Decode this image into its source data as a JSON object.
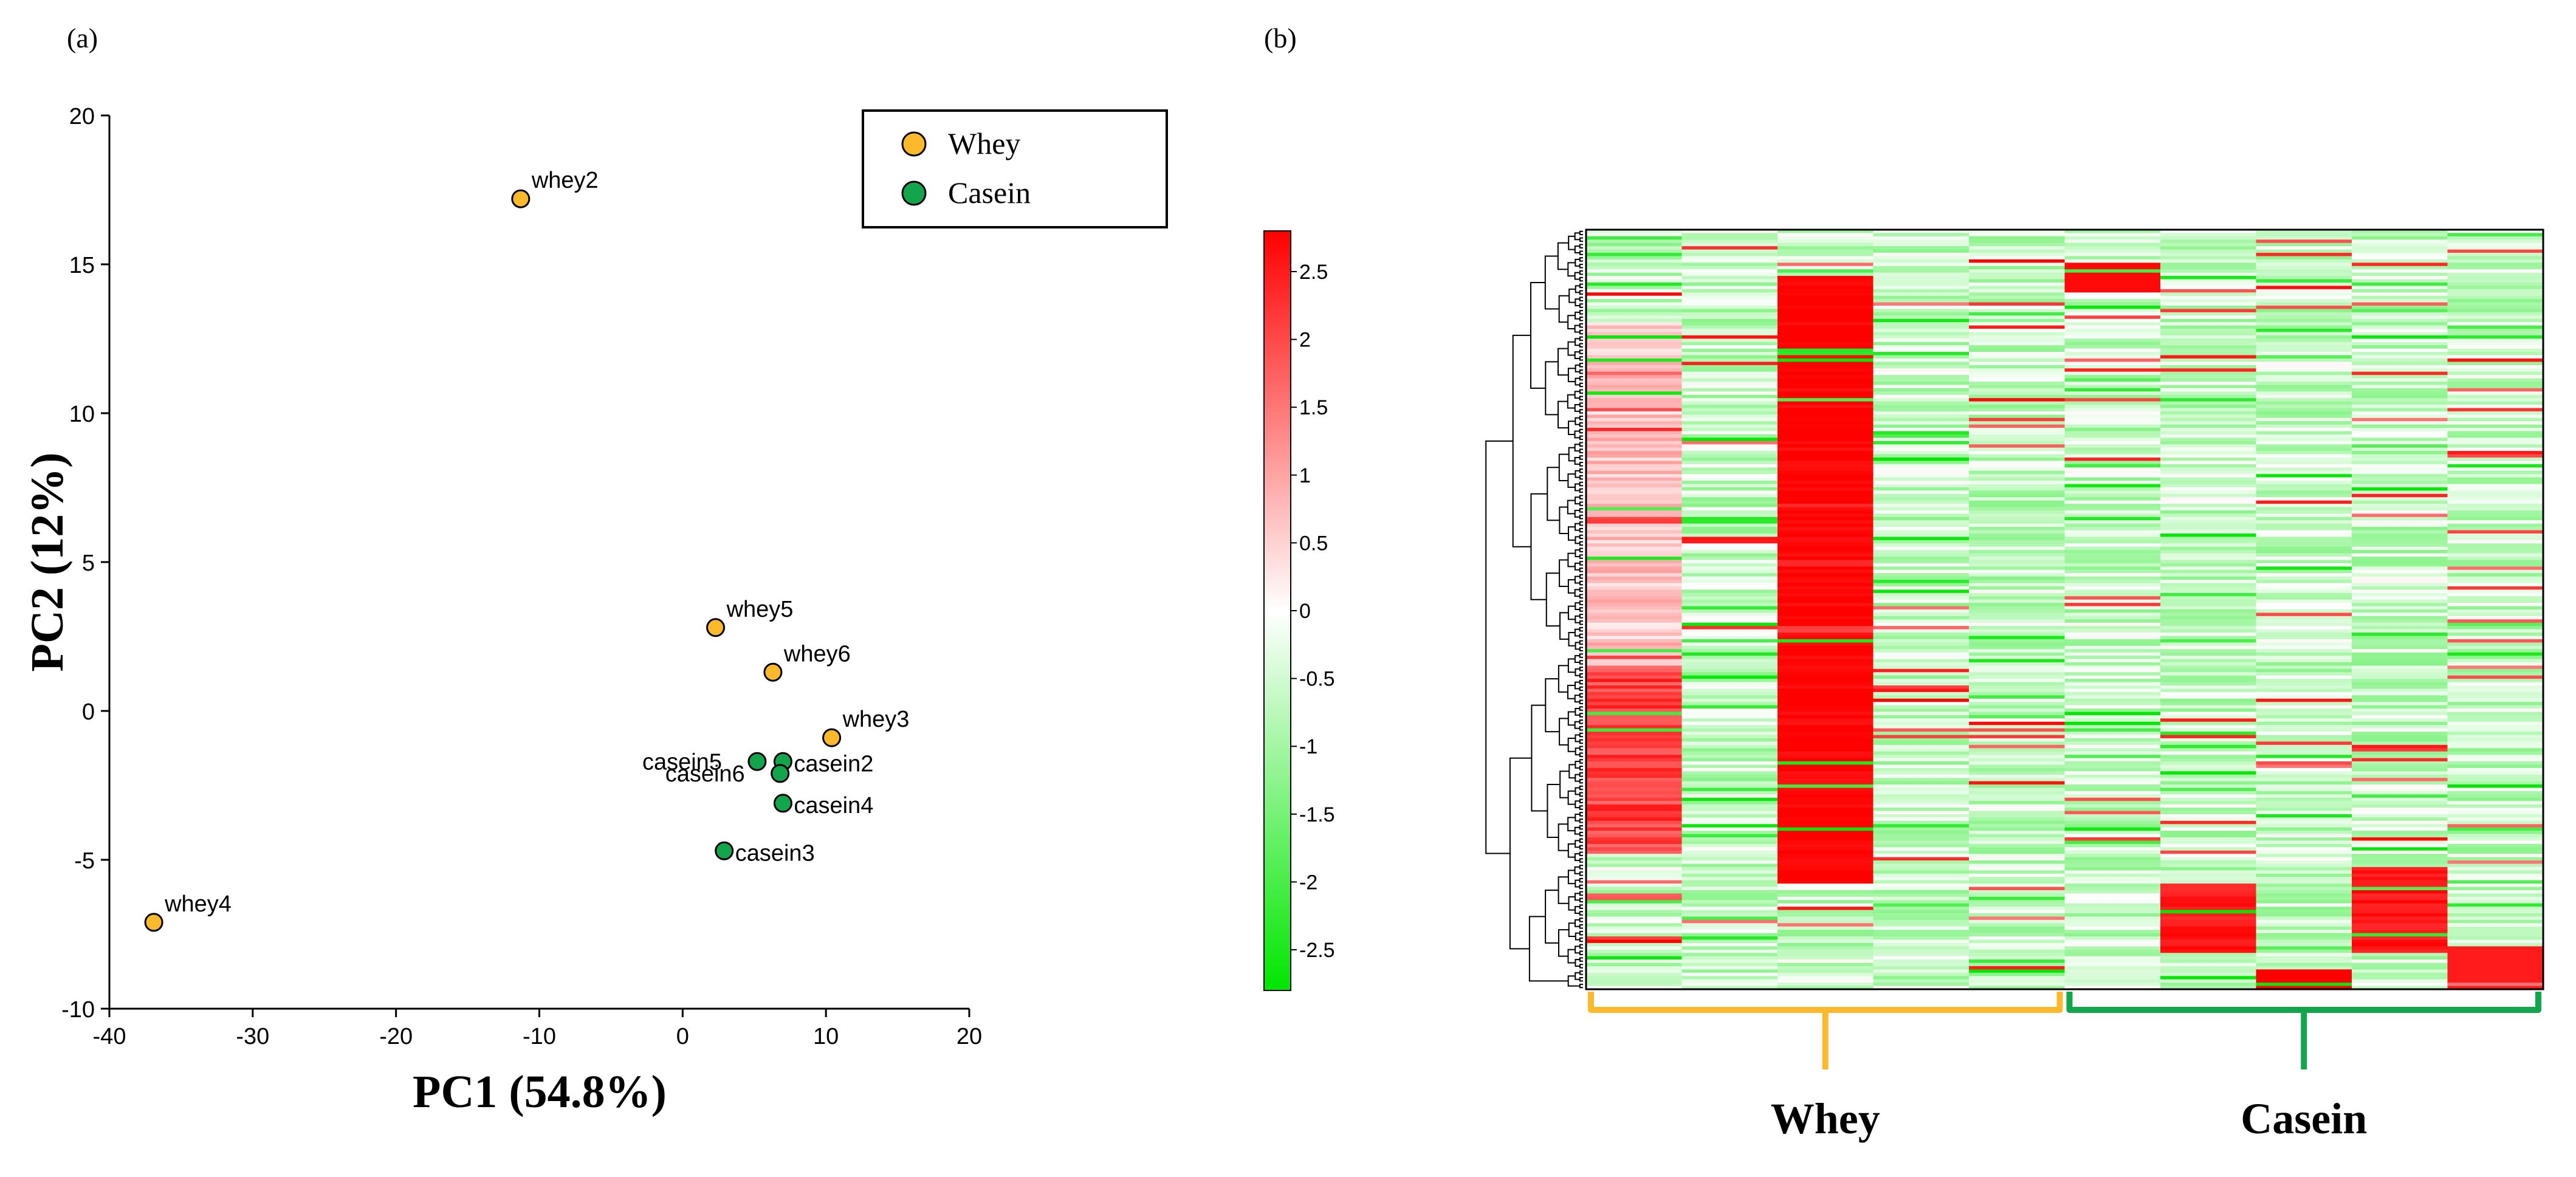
{
  "figure": {
    "panel_a_label": "(a)",
    "panel_b_label": "(b)"
  },
  "chart_data": [
    {
      "type": "scatter",
      "panel": "(a)",
      "xlabel": "PC1 (54.8%)",
      "ylabel": "PC2 (12%)",
      "xlim": [
        -40,
        20
      ],
      "ylim": [
        -10,
        20
      ],
      "xticks": [
        -40,
        -30,
        -20,
        -10,
        0,
        10,
        20
      ],
      "yticks": [
        -10,
        -5,
        0,
        5,
        10,
        15,
        20
      ],
      "grid": false,
      "legend_position": "top-right",
      "series": [
        {
          "name": "Whey",
          "color": "#FDB92C",
          "points": [
            {
              "label": "whey2",
              "x": -11.3,
              "y": 17.2,
              "label_side": "right"
            },
            {
              "label": "whey5",
              "x": 2.3,
              "y": 2.8,
              "label_side": "right"
            },
            {
              "label": "whey6",
              "x": 6.3,
              "y": 1.3,
              "label_side": "right"
            },
            {
              "label": "whey3",
              "x": 10.4,
              "y": -0.9,
              "label_side": "right"
            },
            {
              "label": "whey4",
              "x": -36.9,
              "y": -7.1,
              "label_side": "right"
            }
          ]
        },
        {
          "name": "Casein",
          "color": "#13A54B",
          "points": [
            {
              "label": "casein5",
              "x": 5.2,
              "y": -1.7,
              "label_side": "left"
            },
            {
              "label": "casein2",
              "x": 7.0,
              "y": -1.7,
              "label_side": "right"
            },
            {
              "label": "casein6",
              "x": 6.8,
              "y": -2.1,
              "label_side": "left"
            },
            {
              "label": "casein4",
              "x": 7.0,
              "y": -3.1,
              "label_side": "right"
            },
            {
              "label": "casein3",
              "x": 2.9,
              "y": -4.7,
              "label_side": "right"
            }
          ]
        }
      ]
    },
    {
      "type": "heatmap",
      "panel": "(b)",
      "colorscale": {
        "low_color": "#00E600",
        "mid_color": "#FFFFFF",
        "high_color": "#FF0000",
        "range": [
          -2.8,
          2.8
        ],
        "ticks": [
          "2.5",
          "2",
          "1.5",
          "1",
          "0.5",
          "0",
          "-0.5",
          "-1",
          "-1.5",
          "-2",
          "-2.5"
        ],
        "tick_values": [
          2.5,
          2,
          1.5,
          1,
          0.5,
          0,
          -0.5,
          -1,
          -1.5,
          -2,
          -2.5
        ]
      },
      "columns": 10,
      "rows": 230,
      "groups": [
        {
          "label": "Whey",
          "color": "#FDB92C",
          "columns": 5
        },
        {
          "label": "Casein",
          "color": "#13A54B",
          "columns": 5
        }
      ],
      "row_dendrogram": true
    }
  ]
}
